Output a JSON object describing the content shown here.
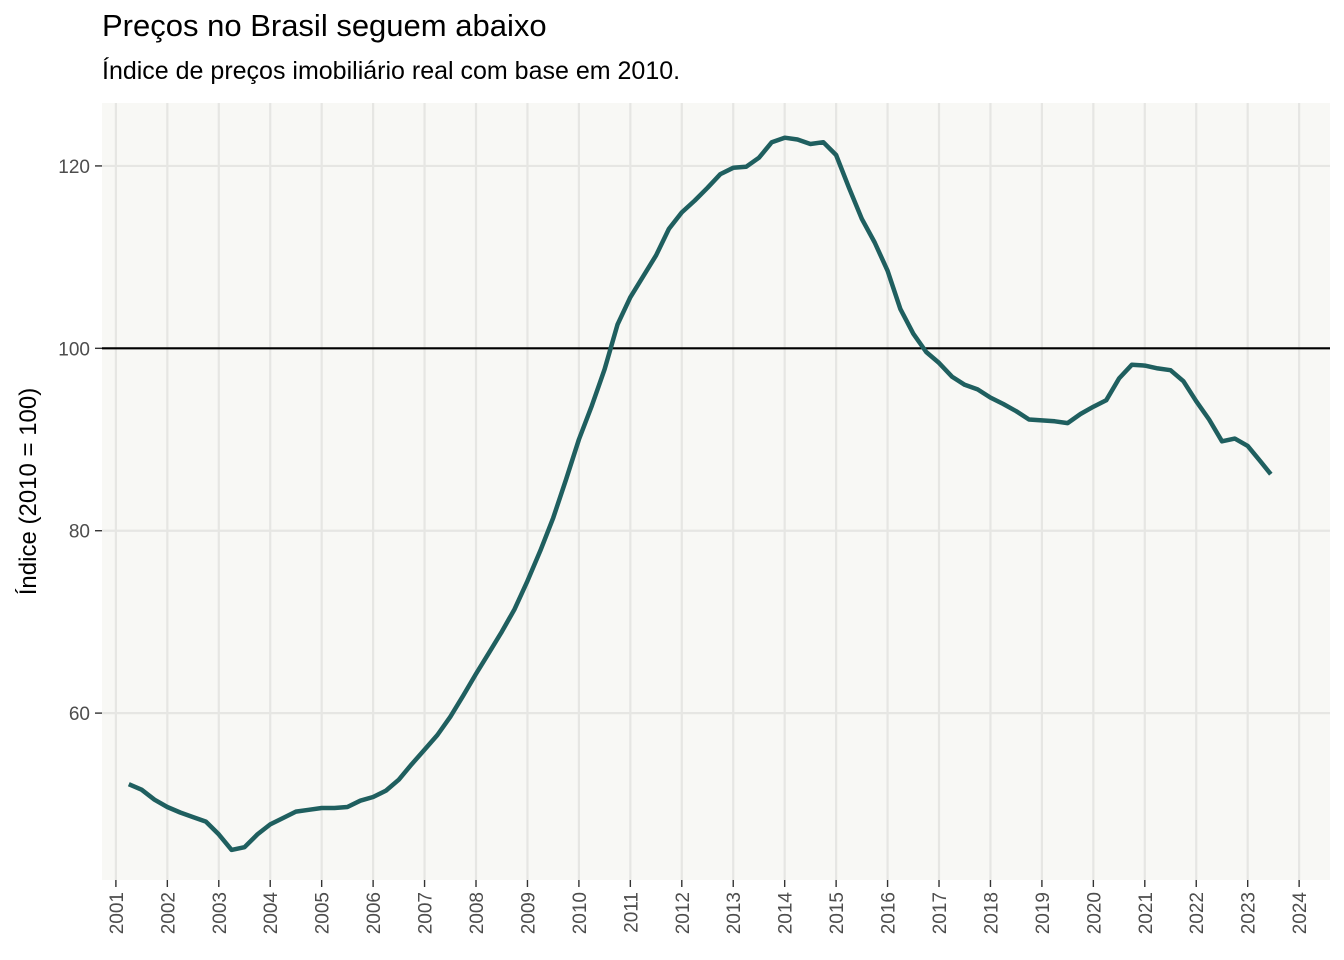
{
  "header": {
    "title": "Preços no Brasil seguem abaixo",
    "subtitle": "Índice de preços imobiliário real com base em 2010."
  },
  "colors": {
    "panel_background": "#f8f8f5",
    "grid": "#e6e6e3",
    "line": "#1f5f5f",
    "reference_line": "#000000"
  },
  "chart_data": {
    "type": "line",
    "title": "Preços no Brasil seguem abaixo",
    "subtitle": "Índice de preços imobiliário real com base em 2010.",
    "xlabel": "",
    "ylabel": "Índice (2010 = 100)",
    "xlim": [
      2000.73,
      2024.6
    ],
    "ylim": [
      41.7,
      126.9
    ],
    "x_ticks": [
      "2001",
      "2002",
      "2003",
      "2004",
      "2005",
      "2006",
      "2007",
      "2008",
      "2009",
      "2010",
      "2011",
      "2012",
      "2013",
      "2014",
      "2015",
      "2016",
      "2017",
      "2018",
      "2019",
      "2020",
      "2021",
      "2022",
      "2023",
      "2024"
    ],
    "y_ticks": [
      60,
      80,
      100,
      120
    ],
    "grid": true,
    "reference_line": {
      "y": 100
    },
    "series": [
      {
        "x": [
          2001.25,
          2001.5,
          2001.75,
          2002.0,
          2002.25,
          2002.5,
          2002.75,
          2003.0,
          2003.25,
          2003.5,
          2003.75,
          2004.0,
          2004.25,
          2004.5,
          2004.75,
          2005.0,
          2005.25,
          2005.5,
          2005.75,
          2006.0,
          2006.25,
          2006.5,
          2006.75,
          2007.0,
          2007.25,
          2007.5,
          2007.75,
          2008.0,
          2008.25,
          2008.5,
          2008.75,
          2009.0,
          2009.25,
          2009.5,
          2009.75,
          2010.0,
          2010.25,
          2010.5,
          2010.75,
          2011.0,
          2011.25,
          2011.5,
          2011.75,
          2012.0,
          2012.25,
          2012.5,
          2012.75,
          2013.0,
          2013.25,
          2013.5,
          2013.75,
          2014.0,
          2014.25,
          2014.5,
          2014.75,
          2015.0,
          2015.25,
          2015.5,
          2015.75,
          2016.0,
          2016.25,
          2016.5,
          2016.75,
          2017.0,
          2017.25,
          2017.5,
          2017.75,
          2018.0,
          2018.25,
          2018.5,
          2018.75,
          2019.0,
          2019.25,
          2019.5,
          2019.75,
          2020.0,
          2020.25,
          2020.5,
          2020.75,
          2021.0,
          2021.25,
          2021.5,
          2021.75,
          2022.0,
          2022.25,
          2022.5,
          2022.75,
          2023.0,
          2023.25,
          2023.45
        ],
        "values": [
          52.2,
          51.6,
          50.5,
          49.7,
          49.1,
          48.6,
          48.1,
          46.7,
          45.0,
          45.3,
          46.7,
          47.8,
          48.5,
          49.2,
          49.4,
          49.6,
          49.6,
          49.7,
          50.4,
          50.8,
          51.5,
          52.7,
          54.4,
          56.0,
          57.6,
          59.6,
          61.9,
          64.3,
          66.6,
          68.9,
          71.4,
          74.5,
          77.8,
          81.4,
          85.6,
          90.0,
          93.7,
          97.7,
          102.6,
          105.6,
          107.9,
          110.2,
          113.1,
          114.9,
          116.2,
          117.6,
          119.1,
          119.8,
          119.9,
          120.9,
          122.6,
          123.1,
          122.9,
          122.4,
          122.6,
          121.2,
          117.6,
          114.2,
          111.6,
          108.5,
          104.3,
          101.6,
          99.6,
          98.4,
          96.9,
          96.0,
          95.5,
          94.6,
          93.9,
          93.1,
          92.2,
          92.1,
          92.0,
          91.8,
          92.8,
          93.6,
          94.3,
          96.7,
          98.2,
          98.1,
          97.8,
          97.6,
          96.4,
          94.2,
          92.2,
          89.8,
          90.1,
          89.3,
          87.6,
          86.2
        ]
      }
    ]
  }
}
